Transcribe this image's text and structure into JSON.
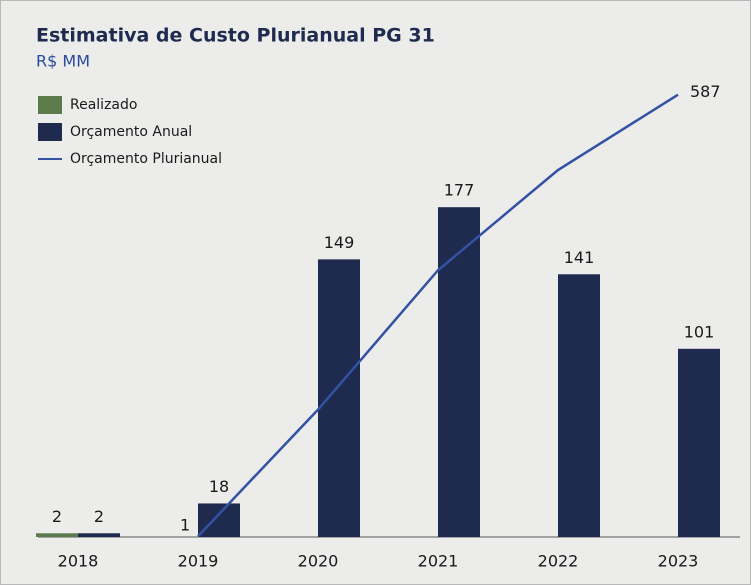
{
  "chart_data": {
    "type": "bar",
    "title": "Estimativa de Custo Plurianual PG 31",
    "subtitle": "R$ MM",
    "categories": [
      "2018",
      "2019",
      "2020",
      "2021",
      "2022",
      "2023"
    ],
    "series": [
      {
        "name": "Realizado",
        "color": "#5b7b4b",
        "values": [
          2,
          null,
          null,
          null,
          null,
          null
        ]
      },
      {
        "name": "Orçamento Anual",
        "color": "#1e2b4f",
        "values": [
          2,
          18,
          149,
          177,
          141,
          101
        ]
      },
      {
        "name": "Orçamento Plurianual",
        "type": "line",
        "axis": "y2",
        "color": "#3452a4",
        "values": [
          null,
          1,
          169,
          354,
          487,
          587
        ],
        "value_labels": [
          null,
          "1",
          null,
          null,
          null,
          "587"
        ]
      }
    ],
    "ylim": [
      0,
      256
    ],
    "y2lim": [
      0,
      633
    ],
    "legend": "top-left"
  }
}
